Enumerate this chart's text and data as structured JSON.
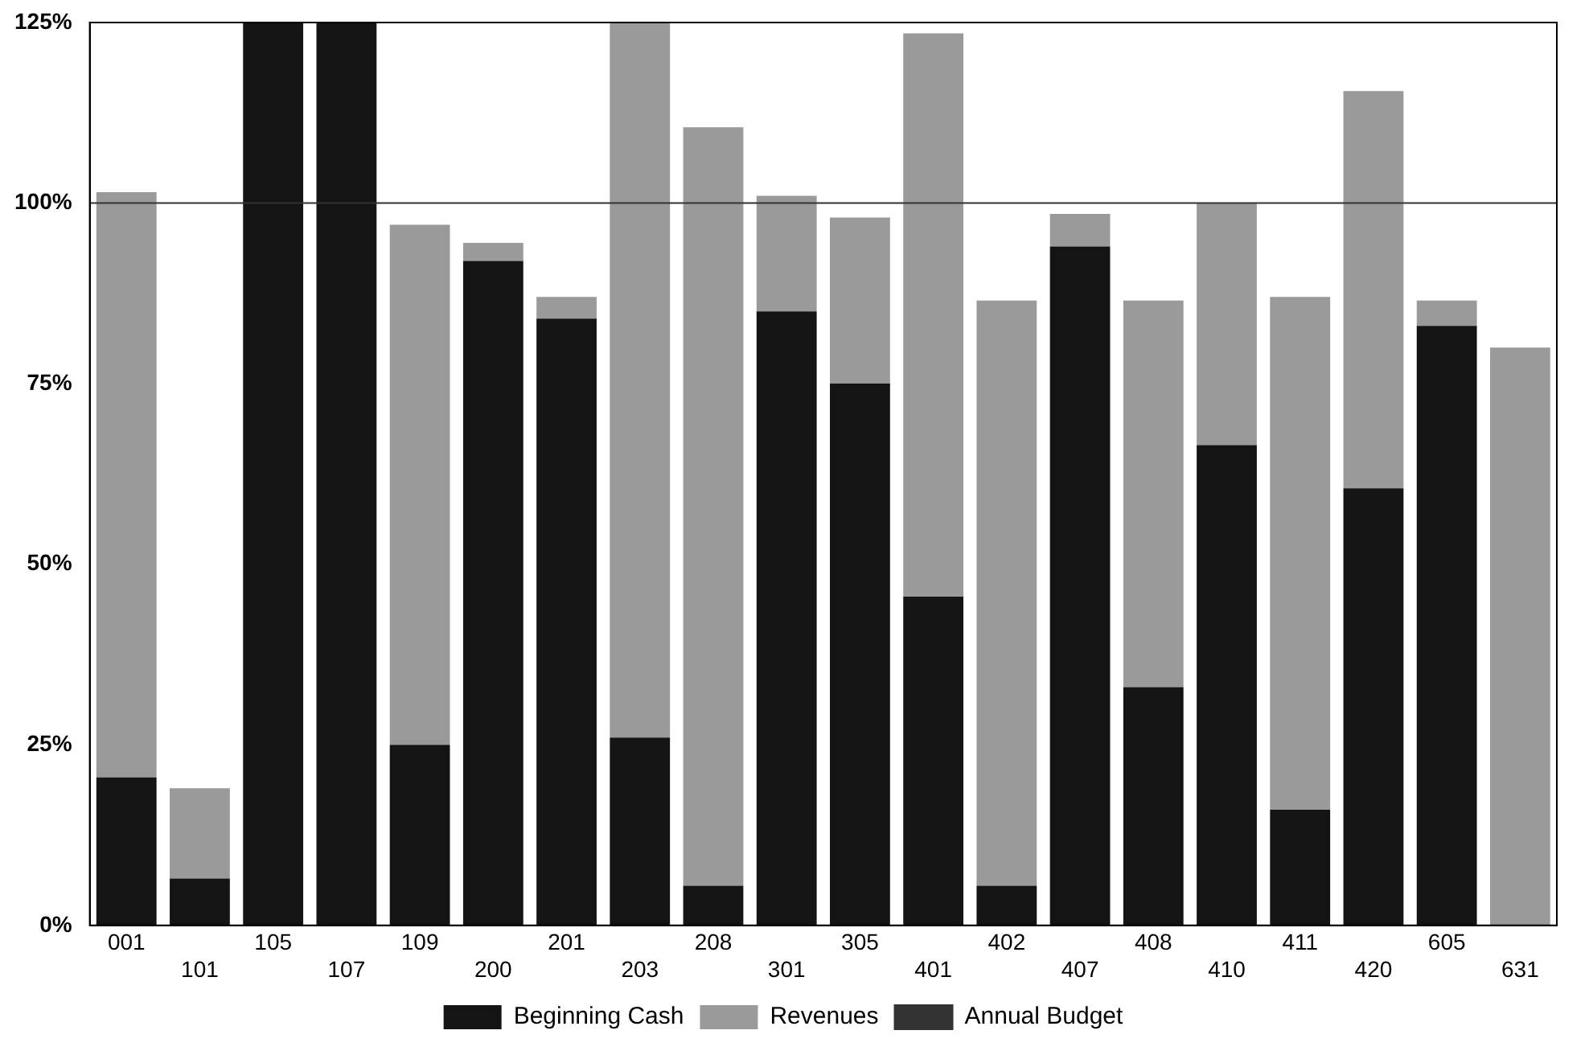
{
  "chart_data": {
    "type": "bar",
    "stacked": true,
    "categories": [
      "001",
      "101",
      "105",
      "107",
      "109",
      "200",
      "201",
      "203",
      "208",
      "301",
      "305",
      "401",
      "402",
      "407",
      "408",
      "410",
      "411",
      "420",
      "605",
      "631"
    ],
    "series": [
      {
        "name": "Beginning Cash",
        "color": "#141414",
        "values": [
          20.5,
          6.5,
          125,
          125,
          25,
          92,
          84,
          26,
          5.5,
          85,
          75,
          45.5,
          5.5,
          94,
          33,
          66.5,
          16,
          60.5,
          83,
          0
        ]
      },
      {
        "name": "Revenues",
        "color": "#9a9a9a",
        "values": [
          81,
          12.5,
          0,
          0,
          72,
          2.5,
          3,
          99,
          105,
          16,
          23,
          78,
          81,
          4.5,
          53.5,
          33.5,
          71,
          55,
          3.5,
          80
        ]
      }
    ],
    "ylim": [
      0,
      125
    ],
    "yticks": [
      {
        "value": 0,
        "label": "0%"
      },
      {
        "value": 25,
        "label": "25%"
      },
      {
        "value": 50,
        "label": "50%"
      },
      {
        "value": 75,
        "label": "75%"
      },
      {
        "value": 100,
        "label": "100%"
      },
      {
        "value": 125,
        "label": "125%"
      }
    ],
    "ref_lines": [
      {
        "axis": "y",
        "value": 100,
        "label": "Annual Budget",
        "color": "#333333"
      }
    ],
    "grid": false,
    "legend": "bottom"
  }
}
